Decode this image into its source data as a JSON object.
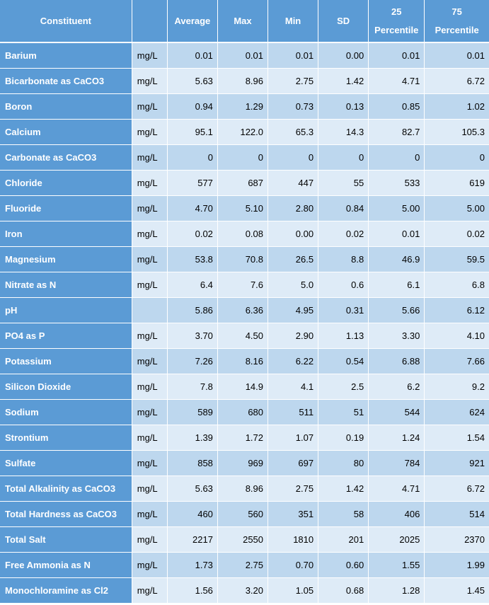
{
  "table": {
    "headers": [
      "Constituent",
      "",
      "Average",
      "Max",
      "Min",
      "SD",
      "25 Percentile",
      "75 Percentile"
    ],
    "header_lines": {
      "p25": [
        "25",
        "Percentile"
      ],
      "p75": [
        "75",
        "Percentile"
      ]
    },
    "rows": [
      {
        "name": "Barium",
        "unit": "mg/L",
        "average": "0.01",
        "max": "0.01",
        "min": "0.01",
        "sd": "0.00",
        "p25": "0.01",
        "p75": "0.01"
      },
      {
        "name": "Bicarbonate as CaCO3",
        "unit": "mg/L",
        "average": "5.63",
        "max": "8.96",
        "min": "2.75",
        "sd": "1.42",
        "p25": "4.71",
        "p75": "6.72"
      },
      {
        "name": "Boron",
        "unit": "mg/L",
        "average": "0.94",
        "max": "1.29",
        "min": "0.73",
        "sd": "0.13",
        "p25": "0.85",
        "p75": "1.02"
      },
      {
        "name": "Calcium",
        "unit": "mg/L",
        "average": "95.1",
        "max": "122.0",
        "min": "65.3",
        "sd": "14.3",
        "p25": "82.7",
        "p75": "105.3"
      },
      {
        "name": "Carbonate as CaCO3",
        "unit": "mg/L",
        "average": "0",
        "max": "0",
        "min": "0",
        "sd": "0",
        "p25": "0",
        "p75": "0"
      },
      {
        "name": "Chloride",
        "unit": "mg/L",
        "average": "577",
        "max": "687",
        "min": "447",
        "sd": "55",
        "p25": "533",
        "p75": "619"
      },
      {
        "name": "Fluoride",
        "unit": "mg/L",
        "average": "4.70",
        "max": "5.10",
        "min": "2.80",
        "sd": "0.84",
        "p25": "5.00",
        "p75": "5.00"
      },
      {
        "name": "Iron",
        "unit": "mg/L",
        "average": "0.02",
        "max": "0.08",
        "min": "0.00",
        "sd": "0.02",
        "p25": "0.01",
        "p75": "0.02"
      },
      {
        "name": "Magnesium",
        "unit": "mg/L",
        "average": "53.8",
        "max": "70.8",
        "min": "26.5",
        "sd": "8.8",
        "p25": "46.9",
        "p75": "59.5"
      },
      {
        "name": "Nitrate as N",
        "unit": "mg/L",
        "average": "6.4",
        "max": "7.6",
        "min": "5.0",
        "sd": "0.6",
        "p25": "6.1",
        "p75": "6.8"
      },
      {
        "name": "pH",
        "unit": "",
        "average": "5.86",
        "max": "6.36",
        "min": "4.95",
        "sd": "0.31",
        "p25": "5.66",
        "p75": "6.12"
      },
      {
        "name": "PO4 as P",
        "unit": "mg/L",
        "average": "3.70",
        "max": "4.50",
        "min": "2.90",
        "sd": "1.13",
        "p25": "3.30",
        "p75": "4.10"
      },
      {
        "name": "Potassium",
        "unit": "mg/L",
        "average": "7.26",
        "max": "8.16",
        "min": "6.22",
        "sd": "0.54",
        "p25": "6.88",
        "p75": "7.66"
      },
      {
        "name": "Silicon Dioxide",
        "unit": "mg/L",
        "average": "7.8",
        "max": "14.9",
        "min": "4.1",
        "sd": "2.5",
        "p25": "6.2",
        "p75": "9.2"
      },
      {
        "name": "Sodium",
        "unit": "mg/L",
        "average": "589",
        "max": "680",
        "min": "511",
        "sd": "51",
        "p25": "544",
        "p75": "624"
      },
      {
        "name": "Strontium",
        "unit": "mg/L",
        "average": "1.39",
        "max": "1.72",
        "min": "1.07",
        "sd": "0.19",
        "p25": "1.24",
        "p75": "1.54"
      },
      {
        "name": "Sulfate",
        "unit": "mg/L",
        "average": "858",
        "max": "969",
        "min": "697",
        "sd": "80",
        "p25": "784",
        "p75": "921"
      },
      {
        "name": "Total Alkalinity as CaCO3",
        "unit": "mg/L",
        "average": "5.63",
        "max": "8.96",
        "min": "2.75",
        "sd": "1.42",
        "p25": "4.71",
        "p75": "6.72"
      },
      {
        "name": "Total Hardness as CaCO3",
        "unit": "mg/L",
        "average": "460",
        "max": "560",
        "min": "351",
        "sd": "58",
        "p25": "406",
        "p75": "514"
      },
      {
        "name": "Total Salt",
        "unit": "mg/L",
        "average": "2217",
        "max": "2550",
        "min": "1810",
        "sd": "201",
        "p25": "2025",
        "p75": "2370"
      },
      {
        "name": "Free Ammonia as N",
        "unit": "mg/L",
        "average": "1.73",
        "max": "2.75",
        "min": "0.70",
        "sd": "0.60",
        "p25": "1.55",
        "p75": "1.99"
      },
      {
        "name": "Monochloramine as Cl2",
        "unit": "mg/L",
        "average": "1.56",
        "max": "3.20",
        "min": "1.05",
        "sd": "0.68",
        "p25": "1.28",
        "p75": "1.45"
      }
    ]
  },
  "colors": {
    "header_bg": "#5b9bd5",
    "row_band_dark": "#bdd7ee",
    "row_band_light": "#deebf7",
    "header_text": "#ffffff"
  }
}
